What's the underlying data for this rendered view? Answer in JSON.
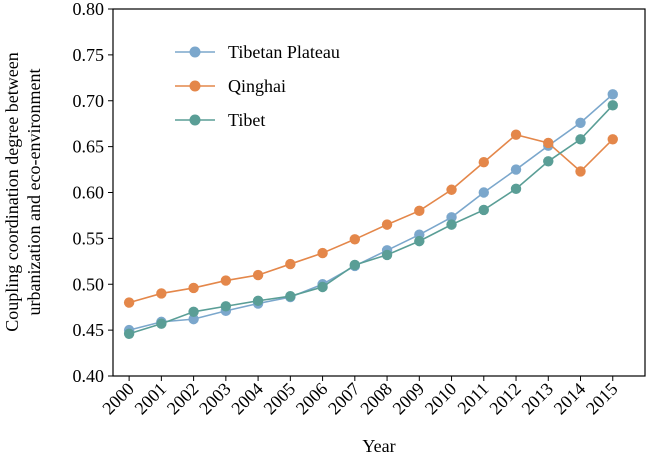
{
  "chart_data": {
    "type": "line",
    "xlabel": "Year",
    "ylabel_lines": [
      "Coupling coordination degree between",
      "urbanization and eco-environment"
    ],
    "x": [
      "2000",
      "2001",
      "2002",
      "2003",
      "2004",
      "2005",
      "2006",
      "2007",
      "2008",
      "2009",
      "2010",
      "2011",
      "2012",
      "2013",
      "2014",
      "2015"
    ],
    "ylim": [
      0.4,
      0.8
    ],
    "yticks": [
      "0.40",
      "0.45",
      "0.50",
      "0.55",
      "0.60",
      "0.65",
      "0.70",
      "0.75",
      "0.80"
    ],
    "grid": false,
    "legend_position": "top-left",
    "series": [
      {
        "name": "Tibetan Plateau",
        "color": "#7BA7CC",
        "values": [
          0.45,
          0.459,
          0.462,
          0.471,
          0.479,
          0.486,
          0.5,
          0.52,
          0.537,
          0.554,
          0.573,
          0.6,
          0.625,
          0.651,
          0.676,
          0.707
        ]
      },
      {
        "name": "Qinghai",
        "color": "#E4874A",
        "values": [
          0.48,
          0.49,
          0.496,
          0.504,
          0.51,
          0.522,
          0.534,
          0.549,
          0.565,
          0.58,
          0.603,
          0.633,
          0.663,
          0.654,
          0.623,
          0.658
        ]
      },
      {
        "name": "Tibet",
        "color": "#5A9E96",
        "values": [
          0.446,
          0.457,
          0.47,
          0.476,
          0.482,
          0.487,
          0.497,
          0.521,
          0.532,
          0.547,
          0.565,
          0.581,
          0.604,
          0.634,
          0.658,
          0.695
        ]
      }
    ]
  }
}
